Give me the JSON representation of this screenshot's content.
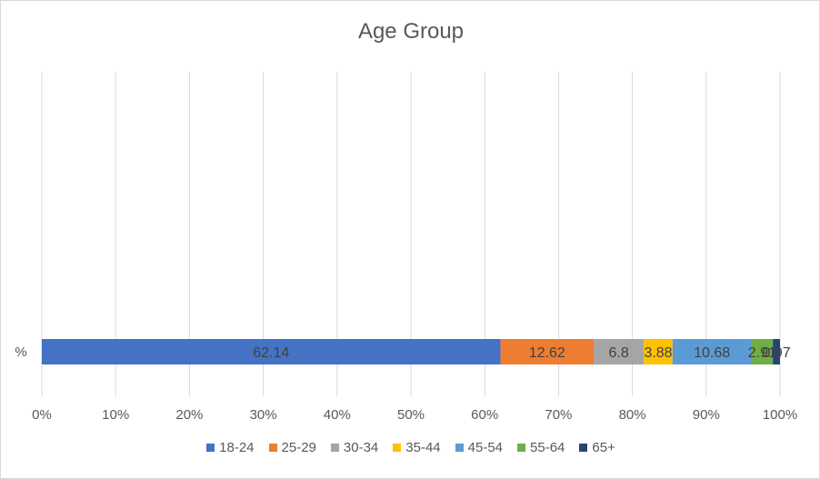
{
  "chart_data": {
    "type": "bar",
    "orientation": "horizontal",
    "stacked": "percent",
    "title": "Age Group",
    "categories": [
      "%"
    ],
    "series": [
      {
        "name": "18-24",
        "values": [
          62.14
        ],
        "color": "#4472C4"
      },
      {
        "name": "25-29",
        "values": [
          12.62
        ],
        "color": "#ED7D31"
      },
      {
        "name": "30-34",
        "values": [
          6.8
        ],
        "color": "#A5A5A5"
      },
      {
        "name": "35-44",
        "values": [
          3.88
        ],
        "color": "#FFC000"
      },
      {
        "name": "45-54",
        "values": [
          10.68
        ],
        "color": "#5B9BD5"
      },
      {
        "name": "55-64",
        "values": [
          2.91
        ],
        "color": "#70AD47"
      },
      {
        "name": "65+",
        "values": [
          0.97
        ],
        "color": "#264478"
      }
    ],
    "xlim": [
      0,
      100
    ],
    "x_ticks": [
      "0%",
      "10%",
      "20%",
      "30%",
      "40%",
      "50%",
      "60%",
      "70%",
      "80%",
      "90%",
      "100%"
    ],
    "grid": "vertical",
    "legend": "bottom"
  }
}
